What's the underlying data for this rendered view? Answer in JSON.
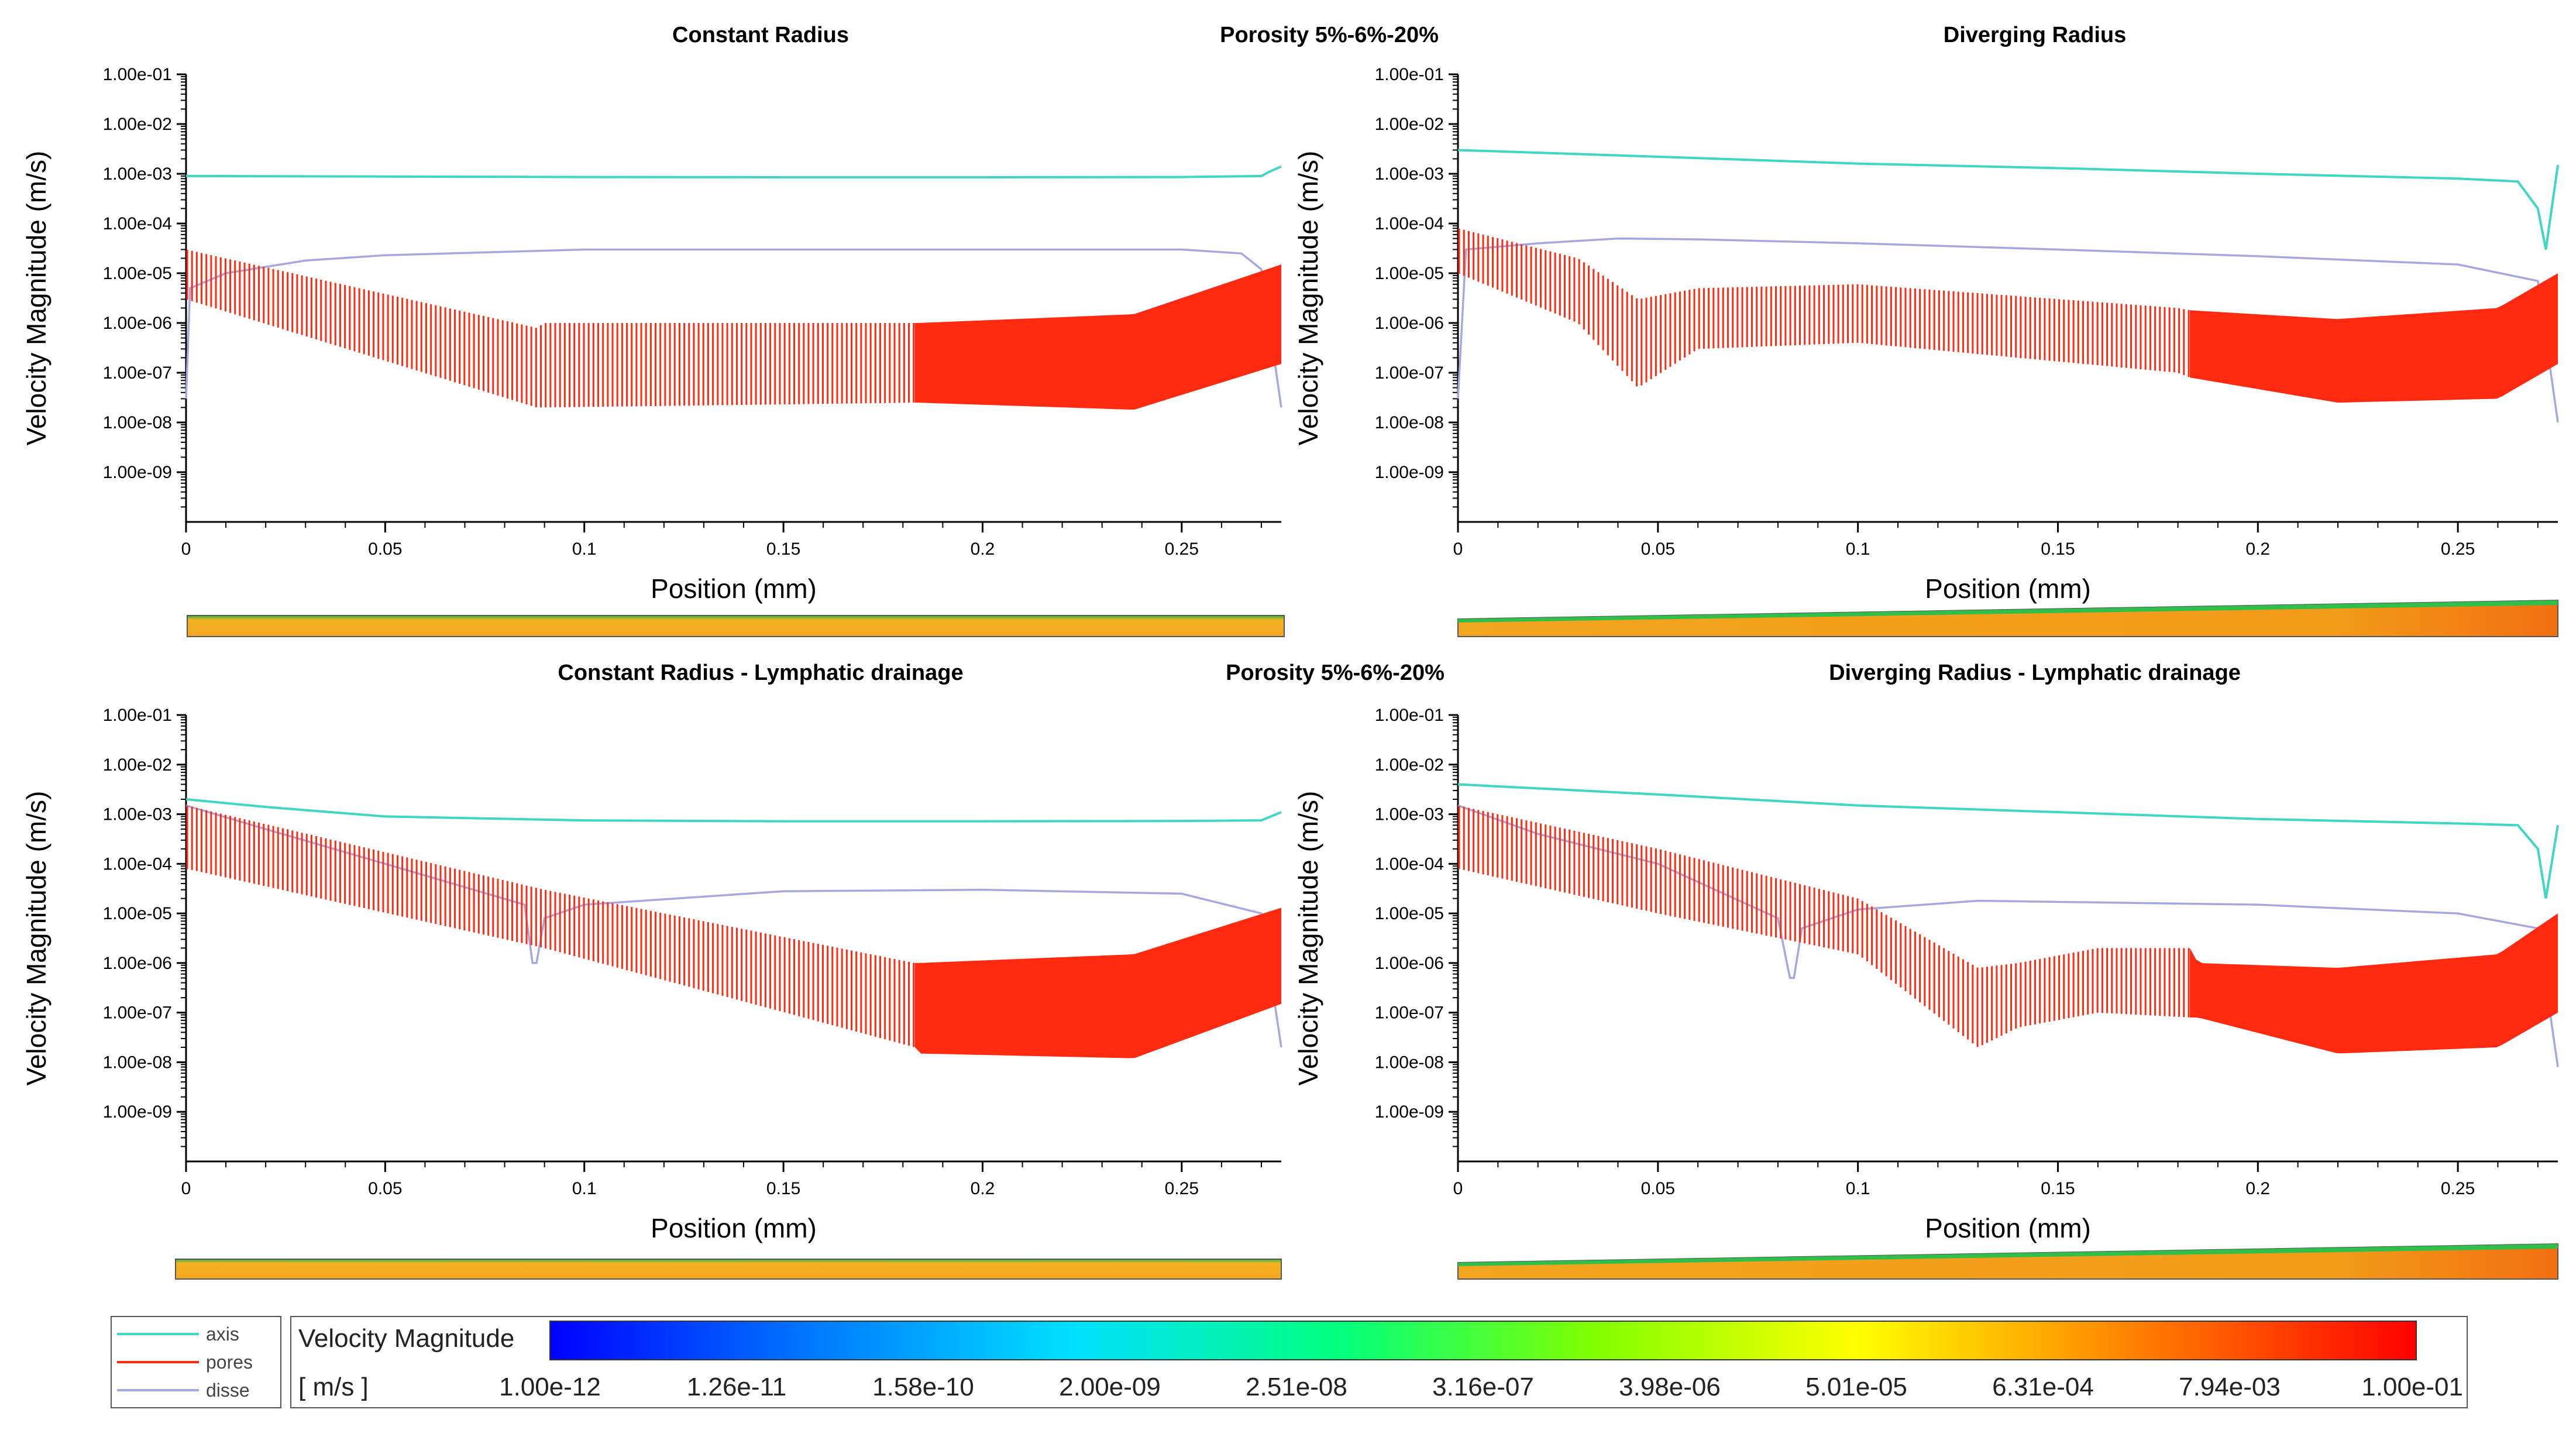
{
  "figure": {
    "porosity_label_top": "Porosity 5%-6%-20%",
    "porosity_label_bottom": "Porosity 5%-6%-20%"
  },
  "legend": {
    "items": [
      {
        "name": "axis",
        "color": "#3fd6c4"
      },
      {
        "name": "pores",
        "color": "#ff2a10"
      },
      {
        "name": "disse",
        "color": "#a6a6e0"
      }
    ]
  },
  "colorbar": {
    "title": "Velocity Magnitude",
    "unit": "[ m/s ]",
    "tick_labels": [
      "1.00e-12",
      "1.26e-11",
      "1.58e-10",
      "2.00e-09",
      "2.51e-08",
      "3.16e-07",
      "3.98e-06",
      "5.01e-05",
      "6.31e-04",
      "7.94e-03",
      "1.00e-01"
    ],
    "colors": [
      "#0000ff",
      "#0078ff",
      "#00e0ff",
      "#00ff80",
      "#80ff00",
      "#ffff00",
      "#ff8000",
      "#ff0000"
    ]
  },
  "chart_data": [
    {
      "type": "line",
      "title": "Constant Radius",
      "xlabel": "Position (mm)",
      "ylabel": "Velocity Magnitude (m/s)",
      "yscale": "log",
      "xlim": [
        0,
        0.275
      ],
      "ylim": [
        1e-10,
        0.1
      ],
      "xticks": [
        "0",
        "0.05",
        "0.1",
        "0.15",
        "0.2",
        "0.25"
      ],
      "yticks": [
        "1.00e-01",
        "1.00e-02",
        "1.00e-03",
        "1.00e-04",
        "1.00e-05",
        "1.00e-06",
        "1.00e-07",
        "1.00e-08",
        "1.00e-09"
      ],
      "series": [
        {
          "name": "axis",
          "x": [
            0,
            0.05,
            0.1,
            0.15,
            0.2,
            0.25,
            0.27,
            0.272,
            0.275
          ],
          "y": [
            0.0009,
            0.00088,
            0.00086,
            0.00085,
            0.00085,
            0.00086,
            0.0009,
            0.0011,
            0.0014
          ]
        },
        {
          "name": "disse",
          "x": [
            0,
            0.001,
            0.01,
            0.03,
            0.05,
            0.1,
            0.15,
            0.2,
            0.25,
            0.265,
            0.27,
            0.275
          ],
          "y": [
            3e-08,
            5e-06,
            1e-05,
            1.8e-05,
            2.3e-05,
            3e-05,
            3e-05,
            3e-05,
            3e-05,
            2.5e-05,
            1.2e-05,
            2e-08
          ]
        },
        {
          "name": "pores",
          "x": [
            0,
            0.088,
            0.09,
            0.183,
            0.184,
            0.238,
            0.275
          ],
          "y_upper": [
            3e-05,
            8e-07,
            1e-06,
            1e-06,
            1e-06,
            1.5e-06,
            1.5e-05
          ],
          "y_lower": [
            3e-06,
            2e-08,
            2e-08,
            2.5e-08,
            2.5e-08,
            1.8e-08,
            1.5e-07
          ],
          "segments": [
            [
              0,
              0.09,
              "sparse"
            ],
            [
              0.09,
              0.183,
              "sparse"
            ],
            [
              0.183,
              0.275,
              "dense"
            ]
          ]
        }
      ]
    },
    {
      "type": "line",
      "title": "Diverging Radius",
      "xlabel": "Position (mm)",
      "ylabel": "Velocity Magnitude (m/s)",
      "yscale": "log",
      "xlim": [
        0,
        0.275
      ],
      "ylim": [
        1e-10,
        0.1
      ],
      "xticks": [
        "0",
        "0.05",
        "0.1",
        "0.15",
        "0.2",
        "0.25"
      ],
      "yticks": [
        "1.00e-01",
        "1.00e-02",
        "1.00e-03",
        "1.00e-04",
        "1.00e-05",
        "1.00e-06",
        "1.00e-07",
        "1.00e-08",
        "1.00e-09"
      ],
      "series": [
        {
          "name": "axis",
          "x": [
            0,
            0.05,
            0.1,
            0.15,
            0.2,
            0.25,
            0.265,
            0.27,
            0.272,
            0.275
          ],
          "y": [
            0.003,
            0.0022,
            0.0016,
            0.0013,
            0.001,
            0.0008,
            0.0007,
            0.0002,
            3e-05,
            0.0015
          ]
        },
        {
          "name": "disse",
          "x": [
            0,
            0.002,
            0.02,
            0.04,
            0.06,
            0.1,
            0.15,
            0.2,
            0.25,
            0.27,
            0.275
          ],
          "y": [
            3e-08,
            3e-05,
            4e-05,
            5e-05,
            4.8e-05,
            4e-05,
            3e-05,
            2.2e-05,
            1.5e-05,
            7e-06,
            1e-08
          ]
        },
        {
          "name": "pores",
          "x": [
            0,
            0.03,
            0.045,
            0.06,
            0.1,
            0.18,
            0.183,
            0.22,
            0.26,
            0.275
          ],
          "y_upper": [
            8e-05,
            2e-05,
            3e-06,
            5e-06,
            6e-06,
            2e-06,
            1.8e-06,
            1.2e-06,
            2e-06,
            1e-05
          ],
          "y_lower": [
            1e-05,
            1e-06,
            5e-08,
            3e-07,
            4e-07,
            1e-07,
            8e-08,
            2.5e-08,
            3e-08,
            1.5e-07
          ],
          "segments": [
            [
              0,
              0.183,
              "sparse"
            ],
            [
              0.183,
              0.275,
              "dense"
            ]
          ]
        }
      ]
    },
    {
      "type": "line",
      "title": "Constant Radius - Lymphatic drainage",
      "xlabel": "Position (mm)",
      "ylabel": "Velocity Magnitude (m/s)",
      "yscale": "log",
      "xlim": [
        0,
        0.275
      ],
      "ylim": [
        1e-10,
        0.1
      ],
      "xticks": [
        "0",
        "0.05",
        "0.1",
        "0.15",
        "0.2",
        "0.25"
      ],
      "yticks": [
        "1.00e-01",
        "1.00e-02",
        "1.00e-03",
        "1.00e-04",
        "1.00e-05",
        "1.00e-06",
        "1.00e-07",
        "1.00e-08",
        "1.00e-09"
      ],
      "series": [
        {
          "name": "axis",
          "x": [
            0,
            0.02,
            0.05,
            0.1,
            0.15,
            0.2,
            0.25,
            0.27,
            0.275
          ],
          "y": [
            0.002,
            0.0014,
            0.0009,
            0.00075,
            0.00072,
            0.00072,
            0.00073,
            0.00075,
            0.0011
          ]
        },
        {
          "name": "disse",
          "x": [
            0,
            0.02,
            0.05,
            0.085,
            0.087,
            0.088,
            0.09,
            0.1,
            0.15,
            0.2,
            0.25,
            0.27,
            0.275
          ],
          "y": [
            0.0015,
            0.0005,
            0.0001,
            1.5e-05,
            1e-06,
            1e-06,
            8e-06,
            1.5e-05,
            2.8e-05,
            3e-05,
            2.5e-05,
            1e-05,
            2e-08
          ]
        },
        {
          "name": "pores",
          "x": [
            0,
            0.09,
            0.183,
            0.184,
            0.238,
            0.275
          ],
          "y_upper": [
            0.0015,
            3e-05,
            1e-06,
            1e-06,
            1.5e-06,
            1.3e-05
          ],
          "y_lower": [
            8e-05,
            2e-06,
            2e-08,
            1.5e-08,
            1.2e-08,
            1.5e-07
          ],
          "segments": [
            [
              0,
              0.183,
              "sparse"
            ],
            [
              0.183,
              0.275,
              "dense"
            ]
          ]
        }
      ]
    },
    {
      "type": "line",
      "title": "Diverging Radius - Lymphatic drainage",
      "xlabel": "Position (mm)",
      "ylabel": "Velocity Magnitude (m/s)",
      "yscale": "log",
      "xlim": [
        0,
        0.275
      ],
      "ylim": [
        1e-10,
        0.1
      ],
      "xticks": [
        "0",
        "0.05",
        "0.1",
        "0.15",
        "0.2",
        "0.25"
      ],
      "yticks": [
        "1.00e-01",
        "1.00e-02",
        "1.00e-03",
        "1.00e-04",
        "1.00e-05",
        "1.00e-06",
        "1.00e-07",
        "1.00e-08",
        "1.00e-09"
      ],
      "series": [
        {
          "name": "axis",
          "x": [
            0,
            0.05,
            0.1,
            0.15,
            0.2,
            0.25,
            0.265,
            0.27,
            0.272,
            0.275
          ],
          "y": [
            0.004,
            0.0025,
            0.0015,
            0.0011,
            0.0008,
            0.00065,
            0.0006,
            0.0002,
            2e-05,
            0.0006
          ]
        },
        {
          "name": "disse",
          "x": [
            0,
            0.02,
            0.05,
            0.08,
            0.083,
            0.084,
            0.086,
            0.1,
            0.13,
            0.2,
            0.25,
            0.27,
            0.275
          ],
          "y": [
            0.0015,
            0.0004,
            0.0001,
            8e-06,
            5e-07,
            5e-07,
            5e-06,
            1.2e-05,
            1.8e-05,
            1.5e-05,
            1e-05,
            5e-06,
            8e-09
          ]
        },
        {
          "name": "pores",
          "x": [
            0,
            0.05,
            0.1,
            0.13,
            0.14,
            0.16,
            0.183,
            0.185,
            0.22,
            0.26,
            0.275
          ],
          "y_upper": [
            0.0015,
            0.0002,
            2e-05,
            8e-07,
            1e-06,
            2e-06,
            2e-06,
            1e-06,
            8e-07,
            1.5e-06,
            1e-05
          ],
          "y_lower": [
            8e-05,
            1e-05,
            1.5e-06,
            2e-08,
            5e-08,
            1e-07,
            8e-08,
            8e-08,
            1.5e-08,
            2e-08,
            1e-07
          ],
          "segments": [
            [
              0,
              0.183,
              "sparse"
            ],
            [
              0.183,
              0.275,
              "dense"
            ]
          ]
        }
      ]
    }
  ]
}
